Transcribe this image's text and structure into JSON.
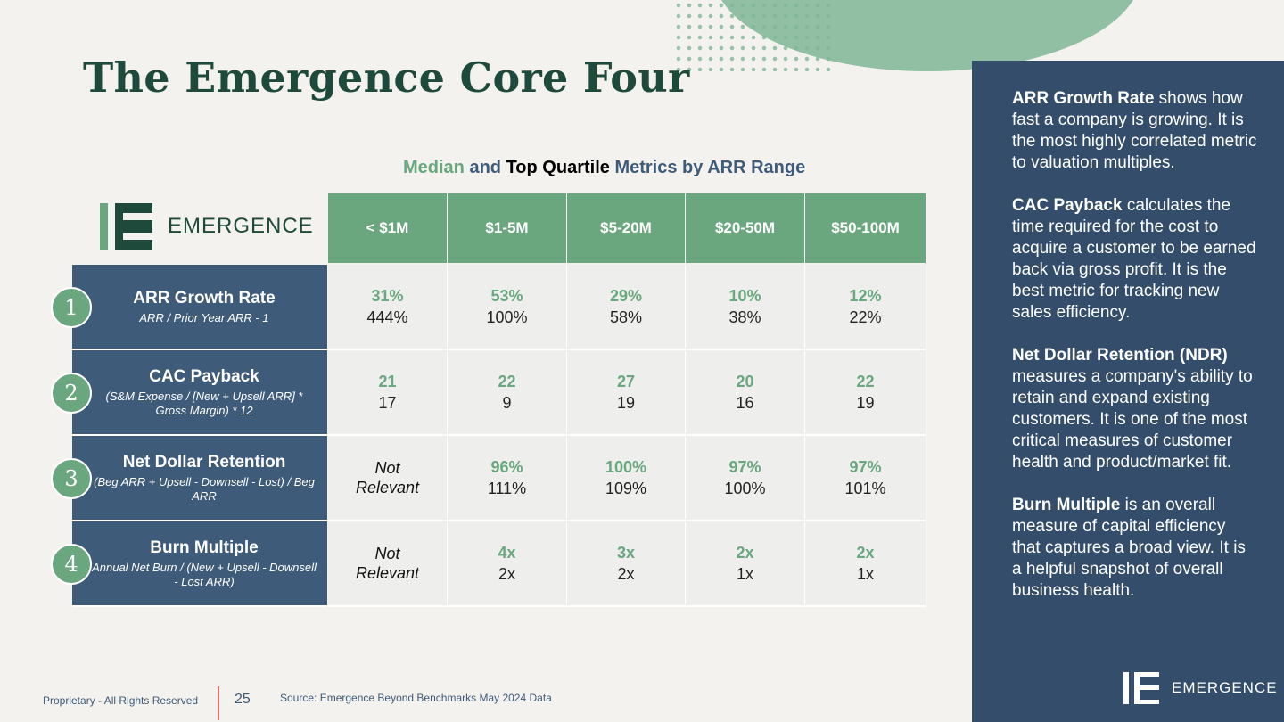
{
  "title": "The Emergence Core Four",
  "subtitle": {
    "part1": "Median",
    "part2": " and ",
    "part3": "Top Quartile",
    "part4": " Metrics by ARR Range"
  },
  "brand": "EMERGENCE",
  "columns": [
    "< $1M",
    "$1-5M",
    "$5-20M",
    "$20-50M",
    "$50-100M"
  ],
  "rows": [
    {
      "num": "1",
      "name": "ARR Growth Rate",
      "formula": "ARR / Prior Year ARR - 1",
      "cells": [
        {
          "median": "31%",
          "top": "444%"
        },
        {
          "median": "53%",
          "top": "100%"
        },
        {
          "median": "29%",
          "top": "58%"
        },
        {
          "median": "10%",
          "top": "38%"
        },
        {
          "median": "12%",
          "top": "22%"
        }
      ]
    },
    {
      "num": "2",
      "name": "CAC Payback",
      "formula": "(S&M Expense / [New + Upsell ARR] * Gross Margin) * 12",
      "cells": [
        {
          "median": "21",
          "top": "17"
        },
        {
          "median": "22",
          "top": "9"
        },
        {
          "median": "27",
          "top": "19"
        },
        {
          "median": "20",
          "top": "16"
        },
        {
          "median": "22",
          "top": "19"
        }
      ]
    },
    {
      "num": "3",
      "name": "Net Dollar Retention",
      "formula": "(Beg ARR + Upsell - Downsell - Lost) / Beg ARR",
      "cells": [
        {
          "nr": "Not Relevant"
        },
        {
          "median": "96%",
          "top": "111%"
        },
        {
          "median": "100%",
          "top": "109%"
        },
        {
          "median": "97%",
          "top": "100%"
        },
        {
          "median": "97%",
          "top": "101%"
        }
      ]
    },
    {
      "num": "4",
      "name": "Burn Multiple",
      "formula": "Annual Net Burn / (New + Upsell - Downsell - Lost ARR)",
      "cells": [
        {
          "nr": "Not Relevant"
        },
        {
          "median": "4x",
          "top": "2x"
        },
        {
          "median": "3x",
          "top": "2x"
        },
        {
          "median": "2x",
          "top": "1x"
        },
        {
          "median": "2x",
          "top": "1x"
        }
      ]
    }
  ],
  "sidebar": [
    {
      "bold": "ARR Growth Rate",
      "rest": " shows how fast a company is growing. It is the most highly correlated metric to valuation multiples."
    },
    {
      "bold": "CAC Payback",
      "rest": " calculates the time required for the cost to acquire a customer to be earned back via gross profit. It is the best metric for tracking new sales efficiency."
    },
    {
      "bold": "Net Dollar Retention (NDR)",
      "rest": " measures a company's ability to retain and expand existing customers. It is one of the most critical measures of customer health and product/market fit."
    },
    {
      "bold": "Burn Multiple",
      "rest": " is an overall measure of capital efficiency that captures a broad view. It is a helpful snapshot of overall business health."
    }
  ],
  "footer": {
    "proprietary": "Proprietary - All Rights Reserved",
    "page": "25",
    "source": "Source: Emergence Beyond Benchmarks May 2024 Data"
  },
  "colors": {
    "green": "#6aa77f",
    "navy": "#334d6b",
    "dark_green": "#1d4a3b"
  }
}
